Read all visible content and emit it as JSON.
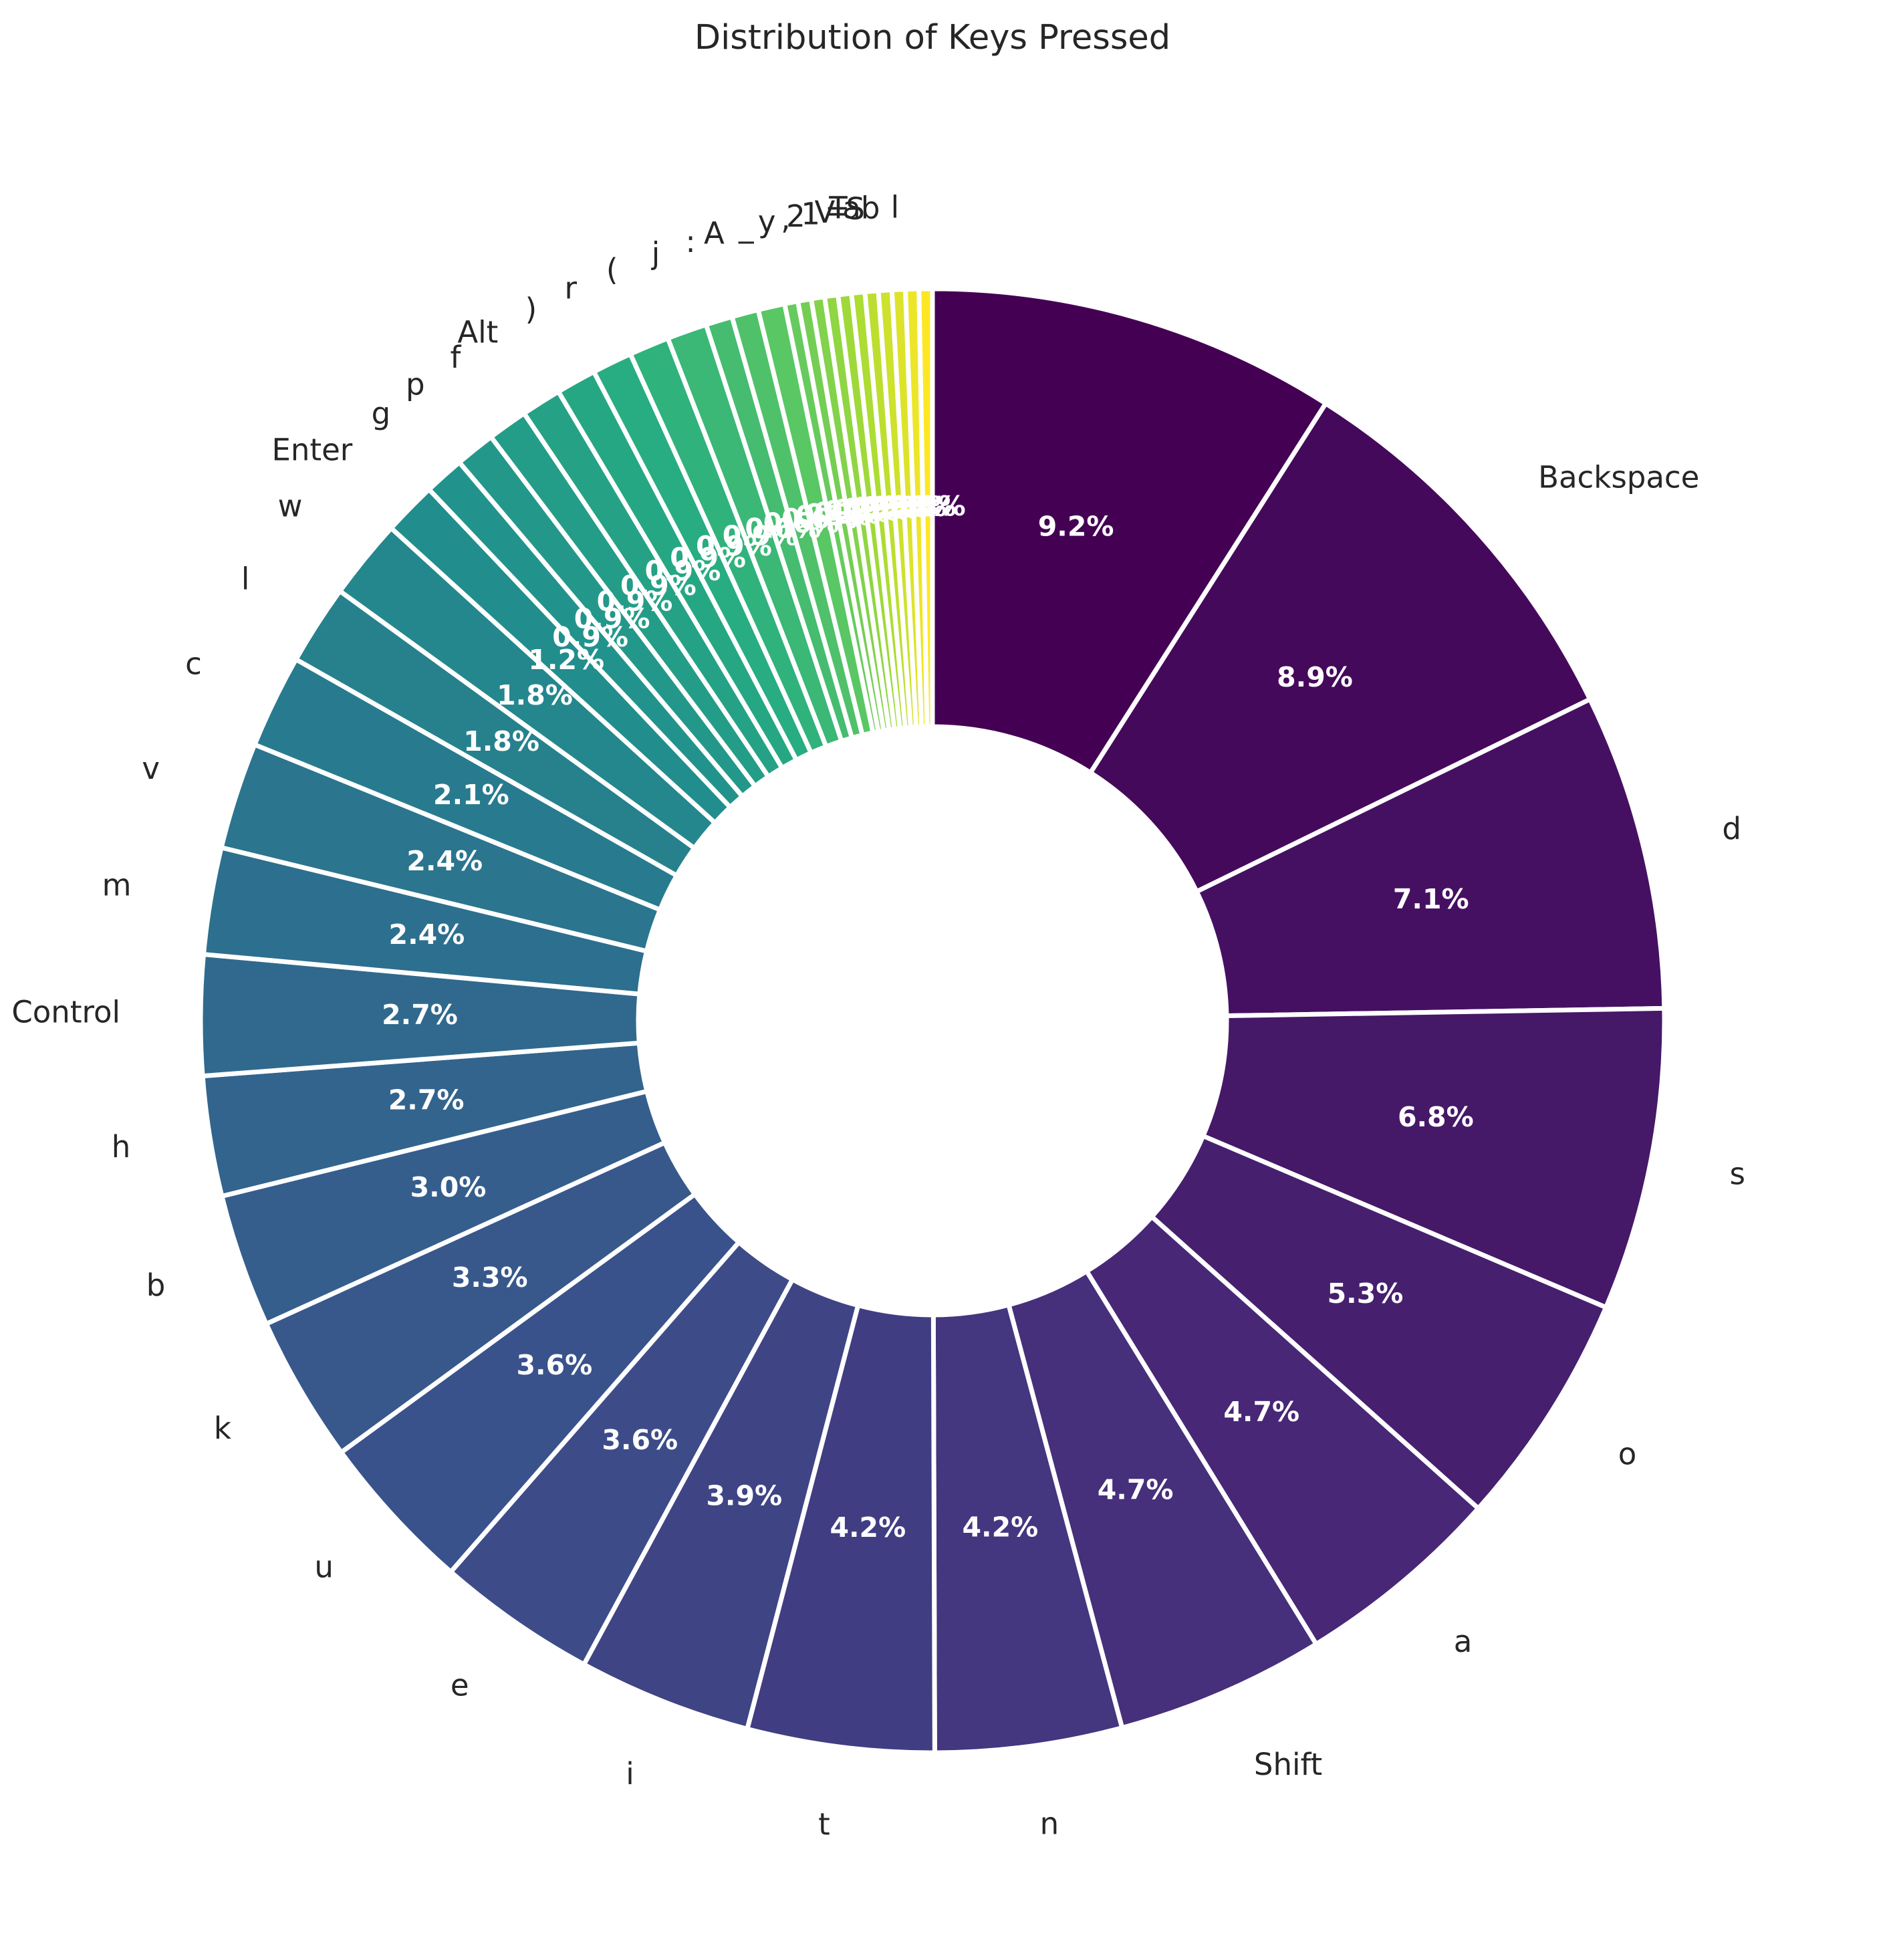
{
  "chart_data": {
    "type": "pie",
    "title": "Distribution of Keys Pressed",
    "donut": true,
    "start_angle": "90deg, clockwise",
    "colormap": "viridis",
    "labels": [
      "",
      "Backspace",
      "d",
      "s",
      "o",
      "a",
      "Shift",
      "n",
      "t",
      "i",
      "e",
      "u",
      "k",
      "b",
      "h",
      "Control",
      "m",
      "v",
      "c",
      "l",
      "w",
      "Enter",
      "g",
      "p",
      "f",
      "Alt",
      ")",
      "r",
      "(",
      "j",
      ":",
      "A",
      "_",
      "y",
      ",",
      "2",
      "1",
      "V",
      "=",
      "S",
      "Tab",
      "l",
      "",
      ""
    ],
    "values": [
      9.2,
      8.9,
      7.1,
      6.8,
      5.3,
      4.7,
      4.7,
      4.2,
      4.2,
      3.9,
      3.6,
      3.6,
      3.3,
      3.0,
      2.7,
      2.7,
      2.4,
      2.4,
      2.1,
      1.8,
      1.8,
      1.2,
      0.9,
      0.9,
      0.9,
      0.9,
      0.9,
      0.9,
      0.9,
      0.9,
      0.6,
      0.6,
      0.6,
      0.3,
      0.3,
      0.3,
      0.3,
      0.3,
      0.3,
      0.3,
      0.3,
      0.3,
      0.3,
      0.3
    ],
    "percent_labels": [
      "9.2%",
      "8.9%",
      "7.1%",
      "6.8%",
      "5.3%",
      "4.7%",
      "4.7%",
      "4.2%",
      "4.2%",
      "3.9%",
      "3.6%",
      "3.6%",
      "3.3%",
      "3.0%",
      "2.7%",
      "2.7%",
      "2.4%",
      "2.4%",
      "2.1%",
      "1.8%",
      "1.8%",
      "1.2%",
      "0.9%",
      "0.9%",
      "0.9%",
      "0.9%",
      "0.9%",
      "0.9%",
      "0.9%",
      "0.9%",
      "0.6%",
      "0.6%",
      "0.6%",
      "0.3%",
      "0.3%",
      "0.3%",
      "0.3%",
      "0.3%",
      "0.3%",
      "0.3%",
      "0.3%",
      "0.3%",
      "0.3%",
      "0.3%"
    ],
    "edge_color": "#ffffff",
    "legend": "none"
  }
}
